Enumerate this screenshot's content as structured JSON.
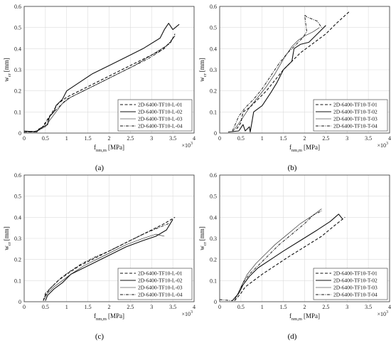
{
  "chart_data": [
    {
      "type": "line",
      "panel": "a",
      "caption": "(a)",
      "xlabel_main": "f",
      "xlabel_sub": "f,nm,m",
      "xlabel_unit": "[MPa]",
      "ylabel_main": "w",
      "ylabel_sub": "cr",
      "ylabel_unit": "[mm]",
      "x_multiplier": "×10",
      "x_multiplier_exp": "3",
      "xlim": [
        0,
        4
      ],
      "ylim": [
        0,
        0.6
      ],
      "xticks": [
        "0",
        "0.5",
        "1",
        "1.5",
        "2",
        "2.5",
        "3",
        "3.5",
        "4"
      ],
      "yticks": [
        "0",
        "0.1",
        "0.2",
        "0.3",
        "0.4",
        "0.5",
        "0.6"
      ],
      "grid": true,
      "legend_position": "bottom-right",
      "series": [
        {
          "name": "2D-6400-TF10-L-01",
          "style": "dashed",
          "x": [
            0,
            0.25,
            0.4,
            0.5,
            0.6,
            0.7,
            0.8,
            1.0,
            1.3,
            1.6,
            2.0,
            2.4,
            2.8,
            3.2,
            3.45,
            3.55
          ],
          "y": [
            0.005,
            0.005,
            0.02,
            0.05,
            0.08,
            0.11,
            0.14,
            0.17,
            0.2,
            0.23,
            0.27,
            0.31,
            0.35,
            0.39,
            0.43,
            0.47
          ]
        },
        {
          "name": "2D-6400-TF10-L-02",
          "style": "solid",
          "x": [
            0,
            0.3,
            0.35,
            0.55,
            0.6,
            0.7,
            0.75,
            0.9,
            1.0,
            1.3,
            1.6,
            2.0,
            2.4,
            2.8,
            3.2,
            3.3,
            3.4,
            3.5,
            3.65
          ],
          "y": [
            0.01,
            0.005,
            0.02,
            0.04,
            0.08,
            0.1,
            0.13,
            0.16,
            0.2,
            0.24,
            0.28,
            0.32,
            0.36,
            0.4,
            0.45,
            0.49,
            0.52,
            0.49,
            0.515
          ]
        },
        {
          "name": "2D-6400-TF10-L-03",
          "style": "thin",
          "x": [
            0,
            0.2,
            0.35,
            0.5,
            0.6,
            0.75,
            0.9,
            1.1,
            1.4,
            1.8,
            2.2,
            2.6,
            3.0,
            3.4,
            3.55
          ],
          "y": [
            0.005,
            0.005,
            0.015,
            0.03,
            0.06,
            0.1,
            0.14,
            0.17,
            0.2,
            0.24,
            0.28,
            0.32,
            0.37,
            0.42,
            0.46
          ]
        },
        {
          "name": "2D-6400-TF10-L-04",
          "style": "dashdot",
          "x": [
            0,
            0.3,
            0.45,
            0.55,
            0.65,
            0.8,
            1.0,
            1.3,
            1.7,
            2.1,
            2.5,
            2.9,
            3.3,
            3.55
          ],
          "y": [
            0.005,
            0.01,
            0.03,
            0.06,
            0.09,
            0.12,
            0.16,
            0.19,
            0.23,
            0.27,
            0.31,
            0.35,
            0.4,
            0.46
          ]
        }
      ]
    },
    {
      "type": "line",
      "panel": "b",
      "caption": "(b)",
      "xlabel_main": "f",
      "xlabel_sub": "f,nm,m",
      "xlabel_unit": "[MPa]",
      "ylabel_main": "w",
      "ylabel_sub": "cr",
      "ylabel_unit": "[mm]",
      "x_multiplier": "×10",
      "x_multiplier_exp": "3",
      "xlim": [
        0,
        4
      ],
      "ylim": [
        0,
        0.6
      ],
      "xticks": [
        "0",
        "0.5",
        "1",
        "1.5",
        "2",
        "2.5",
        "3",
        "3.5",
        "4"
      ],
      "yticks": [
        "0",
        "0.1",
        "0.2",
        "0.3",
        "0.4",
        "0.5",
        "0.6"
      ],
      "grid": true,
      "legend_position": "bottom-right",
      "series": [
        {
          "name": "2D-6400-TF10-T-01",
          "style": "dashed",
          "x": [
            0.4,
            0.5,
            0.55,
            0.7,
            0.9,
            1.1,
            1.3,
            1.5,
            1.7,
            1.9,
            2.1,
            2.3,
            2.5,
            2.75,
            3.05
          ],
          "y": [
            0.02,
            0.05,
            0.1,
            0.12,
            0.16,
            0.2,
            0.25,
            0.3,
            0.34,
            0.38,
            0.41,
            0.44,
            0.47,
            0.52,
            0.575
          ]
        },
        {
          "name": "2D-6400-TF10-T-02",
          "style": "solid",
          "x": [
            0.2,
            0.45,
            0.55,
            0.6,
            0.7,
            0.72,
            0.8,
            1.0,
            1.2,
            1.35,
            1.5,
            1.7,
            1.75,
            1.9,
            2.1,
            2.3,
            2.5
          ],
          "y": [
            0.005,
            0.01,
            0.04,
            0.01,
            0.03,
            0.005,
            0.1,
            0.13,
            0.19,
            0.24,
            0.3,
            0.34,
            0.4,
            0.42,
            0.43,
            0.47,
            0.51
          ]
        },
        {
          "name": "2D-6400-TF10-T-03",
          "style": "thin",
          "x": [
            0.3,
            0.5,
            0.7,
            0.9,
            1.1,
            1.3,
            1.5,
            1.7,
            1.85,
            2.0,
            2.2,
            2.35
          ],
          "y": [
            0.005,
            0.06,
            0.12,
            0.17,
            0.22,
            0.28,
            0.35,
            0.41,
            0.44,
            0.46,
            0.48,
            0.5
          ]
        },
        {
          "name": "2D-6400-TF10-T-04",
          "style": "dashdot",
          "x": [
            0.3,
            0.45,
            0.6,
            0.8,
            1.0,
            1.2,
            1.4,
            1.6,
            1.8,
            1.95,
            2.05,
            2.0,
            2.05,
            2.3,
            2.4
          ],
          "y": [
            0.01,
            0.08,
            0.12,
            0.16,
            0.21,
            0.27,
            0.33,
            0.38,
            0.42,
            0.45,
            0.48,
            0.56,
            0.55,
            0.53,
            0.5
          ]
        }
      ]
    },
    {
      "type": "line",
      "panel": "c",
      "caption": "(c)",
      "xlabel_main": "f",
      "xlabel_sub": "f,nm,m",
      "xlabel_unit": "[MPa]",
      "ylabel_main": "w",
      "ylabel_sub": "cr",
      "ylabel_unit": "[mm]",
      "x_multiplier": "×10",
      "x_multiplier_exp": "3",
      "xlim": [
        0,
        4
      ],
      "ylim": [
        0,
        0.6
      ],
      "xticks": [
        "0",
        "0.5",
        "1",
        "1.5",
        "2",
        "2.5",
        "3",
        "3.5",
        "4"
      ],
      "yticks": [
        "0",
        "0.1",
        "0.2",
        "0.3",
        "0.4",
        "0.5",
        "0.6"
      ],
      "grid": true,
      "legend_position": "bottom-right",
      "series": [
        {
          "name": "2D-6400-TF10-L-01",
          "style": "dashed",
          "x": [
            0.45,
            0.5,
            0.6,
            0.8,
            1.0,
            1.3,
            1.6,
            2.0,
            2.4,
            2.8,
            3.1,
            3.3,
            3.55
          ],
          "y": [
            0.005,
            0.03,
            0.06,
            0.1,
            0.13,
            0.17,
            0.2,
            0.24,
            0.28,
            0.32,
            0.35,
            0.37,
            0.4
          ]
        },
        {
          "name": "2D-6400-TF10-L-02",
          "style": "solid",
          "x": [
            0.5,
            0.55,
            0.7,
            0.9,
            1.1,
            1.4,
            1.7,
            2.0,
            2.4,
            2.8,
            3.1,
            3.35,
            3.5
          ],
          "y": [
            0.005,
            0.03,
            0.06,
            0.09,
            0.13,
            0.16,
            0.19,
            0.22,
            0.26,
            0.29,
            0.31,
            0.34,
            0.39
          ]
        },
        {
          "name": "2D-6400-TF10-L-03",
          "style": "thin",
          "x": [
            0.45,
            0.55,
            0.7,
            0.9,
            1.1,
            1.4,
            1.7,
            2.0,
            2.4,
            2.8,
            3.1,
            3.3
          ],
          "y": [
            0.005,
            0.04,
            0.07,
            0.1,
            0.13,
            0.17,
            0.2,
            0.23,
            0.27,
            0.3,
            0.32,
            0.31
          ]
        },
        {
          "name": "2D-6400-TF10-L-04",
          "style": "dashdot",
          "x": [
            0.45,
            0.5,
            0.65,
            0.85,
            1.05,
            1.35,
            1.65,
            2.0,
            2.4,
            2.8,
            3.15,
            3.4
          ],
          "y": [
            0.005,
            0.04,
            0.07,
            0.11,
            0.14,
            0.18,
            0.21,
            0.24,
            0.28,
            0.32,
            0.35,
            0.37
          ]
        }
      ]
    },
    {
      "type": "line",
      "panel": "d",
      "caption": "(d)",
      "xlabel_main": "f",
      "xlabel_sub": "f,nm,m",
      "xlabel_unit": "[MPa]",
      "ylabel_main": "w",
      "ylabel_sub": "cr",
      "ylabel_unit": "[mm]",
      "x_multiplier": "×10",
      "x_multiplier_exp": "3",
      "xlim": [
        0,
        4
      ],
      "ylim": [
        0,
        0.6
      ],
      "xticks": [
        "0",
        "0.5",
        "1",
        "1.5",
        "2",
        "2.5",
        "3",
        "3.5",
        "4"
      ],
      "yticks": [
        "0",
        "0.1",
        "0.2",
        "0.3",
        "0.4",
        "0.5",
        "0.6"
      ],
      "grid": true,
      "legend_position": "bottom-right",
      "series": [
        {
          "name": "2D-6400-TF10-T-01",
          "style": "dashed",
          "x": [
            0.35,
            0.5,
            0.6,
            0.8,
            1.0,
            1.3,
            1.6,
            2.0,
            2.4,
            2.7,
            2.95
          ],
          "y": [
            0.005,
            0.04,
            0.07,
            0.1,
            0.13,
            0.17,
            0.21,
            0.26,
            0.31,
            0.36,
            0.4
          ]
        },
        {
          "name": "2D-6400-TF10-T-02",
          "style": "solid",
          "x": [
            0.3,
            0.45,
            0.55,
            0.7,
            0.9,
            1.2,
            1.5,
            1.9,
            2.3,
            2.6,
            2.8,
            2.9
          ],
          "y": [
            0.005,
            0.04,
            0.08,
            0.12,
            0.16,
            0.2,
            0.24,
            0.29,
            0.34,
            0.38,
            0.415,
            0.39
          ]
        },
        {
          "name": "2D-6400-TF10-T-03",
          "style": "thin",
          "x": [
            0.35,
            0.5,
            0.65,
            0.85,
            1.05,
            1.3,
            1.6,
            1.9,
            2.2,
            2.4
          ],
          "y": [
            0.005,
            0.07,
            0.13,
            0.18,
            0.22,
            0.27,
            0.32,
            0.37,
            0.41,
            0.44
          ]
        },
        {
          "name": "2D-6400-TF10-T-04",
          "style": "dashdot",
          "x": [
            0,
            0.3,
            0.45,
            0.55,
            0.7,
            0.9,
            1.15,
            1.4,
            1.7,
            2.0,
            2.2,
            2.4
          ],
          "y": [
            0.01,
            0.005,
            0.04,
            0.09,
            0.13,
            0.17,
            0.22,
            0.27,
            0.32,
            0.37,
            0.41,
            0.43
          ]
        }
      ]
    }
  ]
}
